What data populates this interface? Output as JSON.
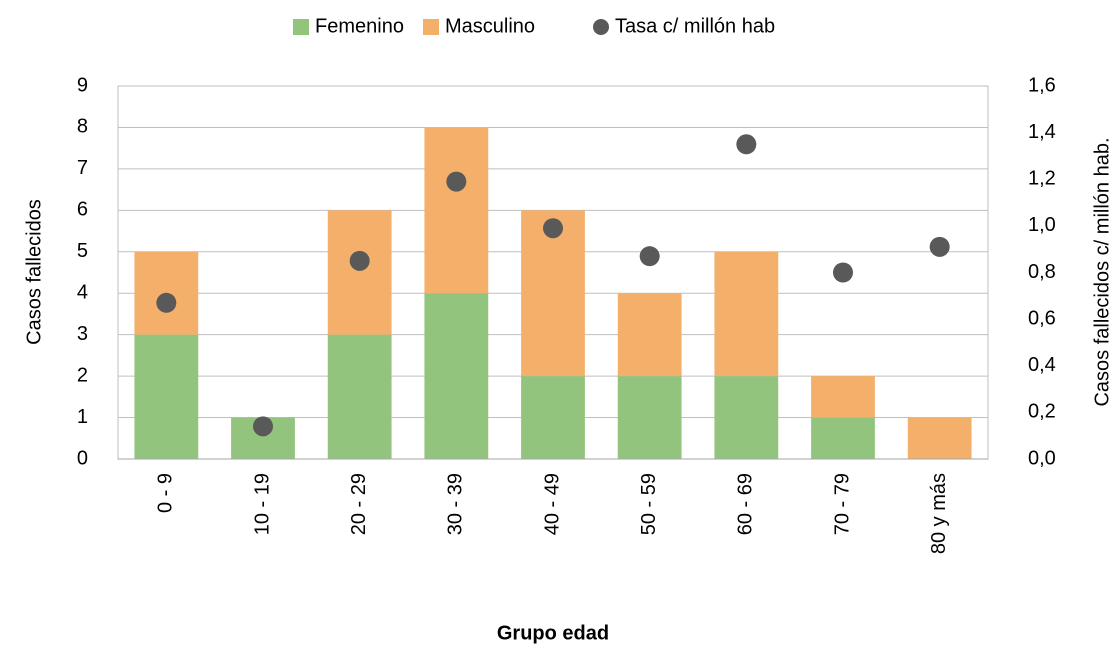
{
  "chart_data": {
    "type": "bar",
    "stacked": true,
    "categories": [
      "0 - 9",
      "10 - 19",
      "20 - 29",
      "30 - 39",
      "40 - 49",
      "50 - 59",
      "60 - 69",
      "70 - 79",
      "80 y más"
    ],
    "series": [
      {
        "name": "Femenino",
        "color": "#93c47d",
        "values": [
          3,
          1,
          3,
          4,
          2,
          2,
          2,
          1,
          0
        ]
      },
      {
        "name": "Masculino",
        "color": "#f4b06b",
        "values": [
          2,
          0,
          3,
          4,
          4,
          2,
          3,
          1,
          1
        ]
      },
      {
        "name": "Tasa c/ millón hab",
        "color": "#595959",
        "type": "scatter",
        "axis": "y2",
        "values": [
          0.67,
          0.14,
          0.85,
          1.19,
          0.99,
          0.87,
          1.35,
          0.8,
          0.91
        ]
      }
    ],
    "x_label": "Grupo edad",
    "y_label": "Casos fallecidos",
    "y2_label": "Casos fallecidos c/ millón hab.",
    "ylim": [
      0,
      9
    ],
    "yticks": [
      0,
      1,
      2,
      3,
      4,
      5,
      6,
      7,
      8,
      9
    ],
    "y2lim": [
      0,
      1.6
    ],
    "y2ticks": [
      {
        "value": 0,
        "label": "0,0"
      },
      {
        "value": 0.2,
        "label": "0,2"
      },
      {
        "value": 0.4,
        "label": "0,4"
      },
      {
        "value": 0.6,
        "label": "0,6"
      },
      {
        "value": 0.8,
        "label": "0,8"
      },
      {
        "value": 1,
        "label": "1,0"
      },
      {
        "value": 1.2,
        "label": "1,2"
      },
      {
        "value": 1.4,
        "label": "1,4"
      },
      {
        "value": 1.6,
        "label": "1,6"
      }
    ],
    "grid": true,
    "legend": "top"
  }
}
